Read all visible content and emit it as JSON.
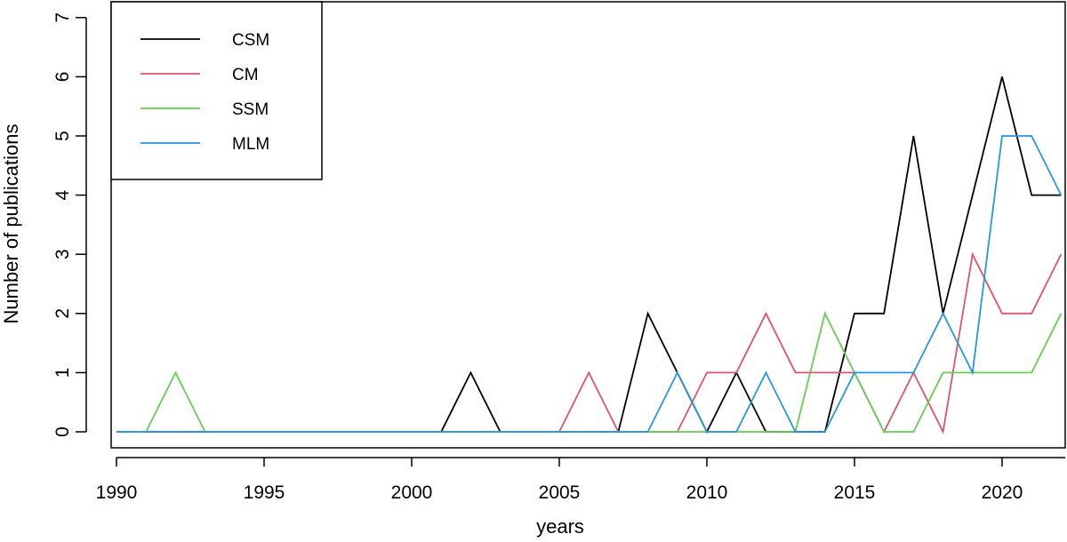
{
  "chart_data": {
    "type": "line",
    "title": "",
    "xlabel": "years",
    "ylabel": "Number of publications",
    "xlim": [
      1990,
      2022
    ],
    "ylim": [
      0,
      7
    ],
    "xticks": [
      1990,
      1995,
      2000,
      2005,
      2010,
      2015,
      2020
    ],
    "yticks": [
      0,
      1,
      2,
      3,
      4,
      5,
      6,
      7
    ],
    "grid": false,
    "legend_position": "top-left",
    "x": [
      1990,
      1991,
      1992,
      1993,
      1994,
      1995,
      1996,
      1997,
      1998,
      1999,
      2000,
      2001,
      2002,
      2003,
      2004,
      2005,
      2006,
      2007,
      2008,
      2009,
      2010,
      2011,
      2012,
      2013,
      2014,
      2015,
      2016,
      2017,
      2018,
      2019,
      2020,
      2021,
      2022
    ],
    "series": [
      {
        "name": "CSM",
        "color": "#000000",
        "values": [
          0,
          0,
          0,
          0,
          0,
          0,
          0,
          0,
          0,
          0,
          0,
          0,
          1,
          0,
          0,
          0,
          0,
          0,
          2,
          1,
          0,
          1,
          0,
          0,
          0,
          2,
          2,
          5,
          2,
          4,
          6,
          4,
          4
        ]
      },
      {
        "name": "CM",
        "color": "#DF536B",
        "values": [
          0,
          0,
          0,
          0,
          0,
          0,
          0,
          0,
          0,
          0,
          0,
          0,
          0,
          0,
          0,
          0,
          1,
          0,
          0,
          0,
          1,
          1,
          2,
          1,
          1,
          1,
          0,
          1,
          0,
          3,
          2,
          2,
          3
        ]
      },
      {
        "name": "SSM",
        "color": "#61D04F",
        "values": [
          0,
          0,
          1,
          0,
          0,
          0,
          0,
          0,
          0,
          0,
          0,
          0,
          0,
          0,
          0,
          0,
          0,
          0,
          0,
          0,
          0,
          0,
          0,
          0,
          2,
          1,
          0,
          0,
          1,
          1,
          1,
          1,
          2
        ]
      },
      {
        "name": "MLM",
        "color": "#2297E6",
        "values": [
          0,
          0,
          0,
          0,
          0,
          0,
          0,
          0,
          0,
          0,
          0,
          0,
          0,
          0,
          0,
          0,
          0,
          0,
          0,
          1,
          0,
          0,
          1,
          0,
          0,
          1,
          1,
          1,
          2,
          1,
          5,
          5,
          4
        ]
      }
    ]
  }
}
